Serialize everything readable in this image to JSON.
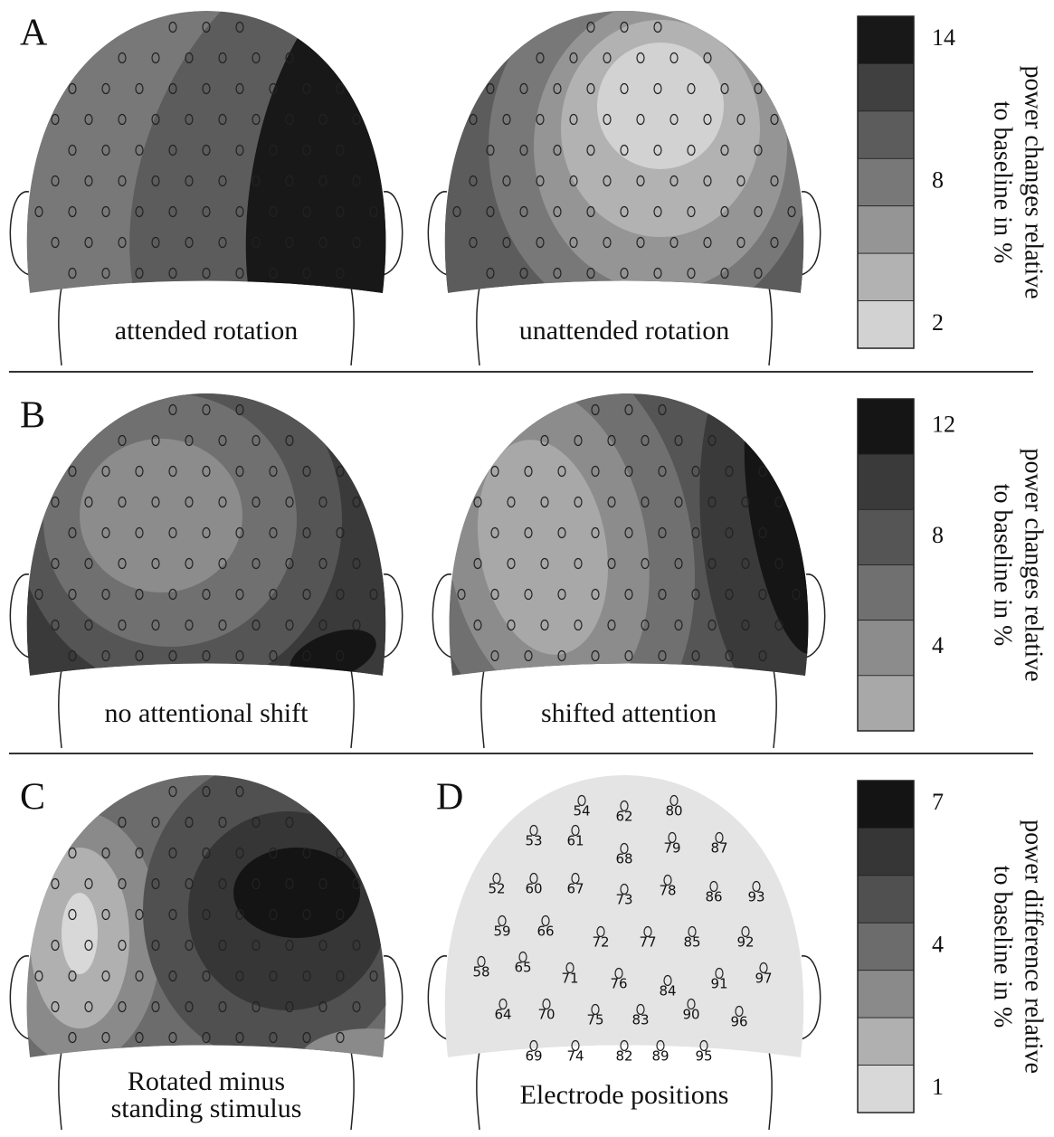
{
  "rows": [
    {
      "maps": [
        {
          "letter": "A",
          "caption": [
            "attended rotation"
          ]
        },
        {
          "caption": [
            "unattended rotation"
          ]
        }
      ],
      "colorbar": {
        "colors": [
          "#181818",
          "#404040",
          "#5c5c5c",
          "#787878",
          "#959595",
          "#b2b2b2",
          "#d2d2d2"
        ],
        "range": [
          1,
          15
        ],
        "ticks": [
          14,
          8,
          2
        ],
        "label": [
          "power changes relative",
          "to baseline in %"
        ]
      }
    },
    {
      "maps": [
        {
          "letter": "B",
          "caption": [
            "no attentional shift"
          ]
        },
        {
          "caption": [
            "shifted attention"
          ]
        }
      ],
      "colorbar": {
        "colors": [
          "#151515",
          "#3a3a3a",
          "#555555",
          "#707070",
          "#8c8c8c",
          "#a8a8a8"
        ],
        "range": [
          1,
          13
        ],
        "ticks": [
          12,
          8,
          4
        ],
        "label": [
          "power changes relative",
          "to baseline in %"
        ]
      }
    },
    {
      "maps": [
        {
          "letter": "C",
          "caption": [
            "Rotated minus",
            "standing stimulus"
          ]
        },
        {
          "letter": "D",
          "caption": [
            "Electrode positions"
          ],
          "electrodes": [
            "54",
            "62",
            "80",
            "53",
            "61",
            "68",
            "79",
            "87",
            "52",
            "60",
            "67",
            "73",
            "78",
            "86",
            "93",
            "59",
            "66",
            "72",
            "77",
            "85",
            "92",
            "58",
            "65",
            "71",
            "76",
            "84",
            "91",
            "97",
            "64",
            "70",
            "75",
            "83",
            "90",
            "96",
            "69",
            "74",
            "82",
            "89",
            "95"
          ]
        }
      ],
      "colorbar": {
        "colors": [
          "#141414",
          "#363636",
          "#505050",
          "#6c6c6c",
          "#8a8a8a",
          "#b0b0b0",
          "#d8d8d8"
        ],
        "range": [
          0.5,
          7.5
        ],
        "ticks": [
          7,
          4,
          1
        ],
        "label": [
          "power difference relative",
          "to baseline in %"
        ]
      }
    }
  ]
}
